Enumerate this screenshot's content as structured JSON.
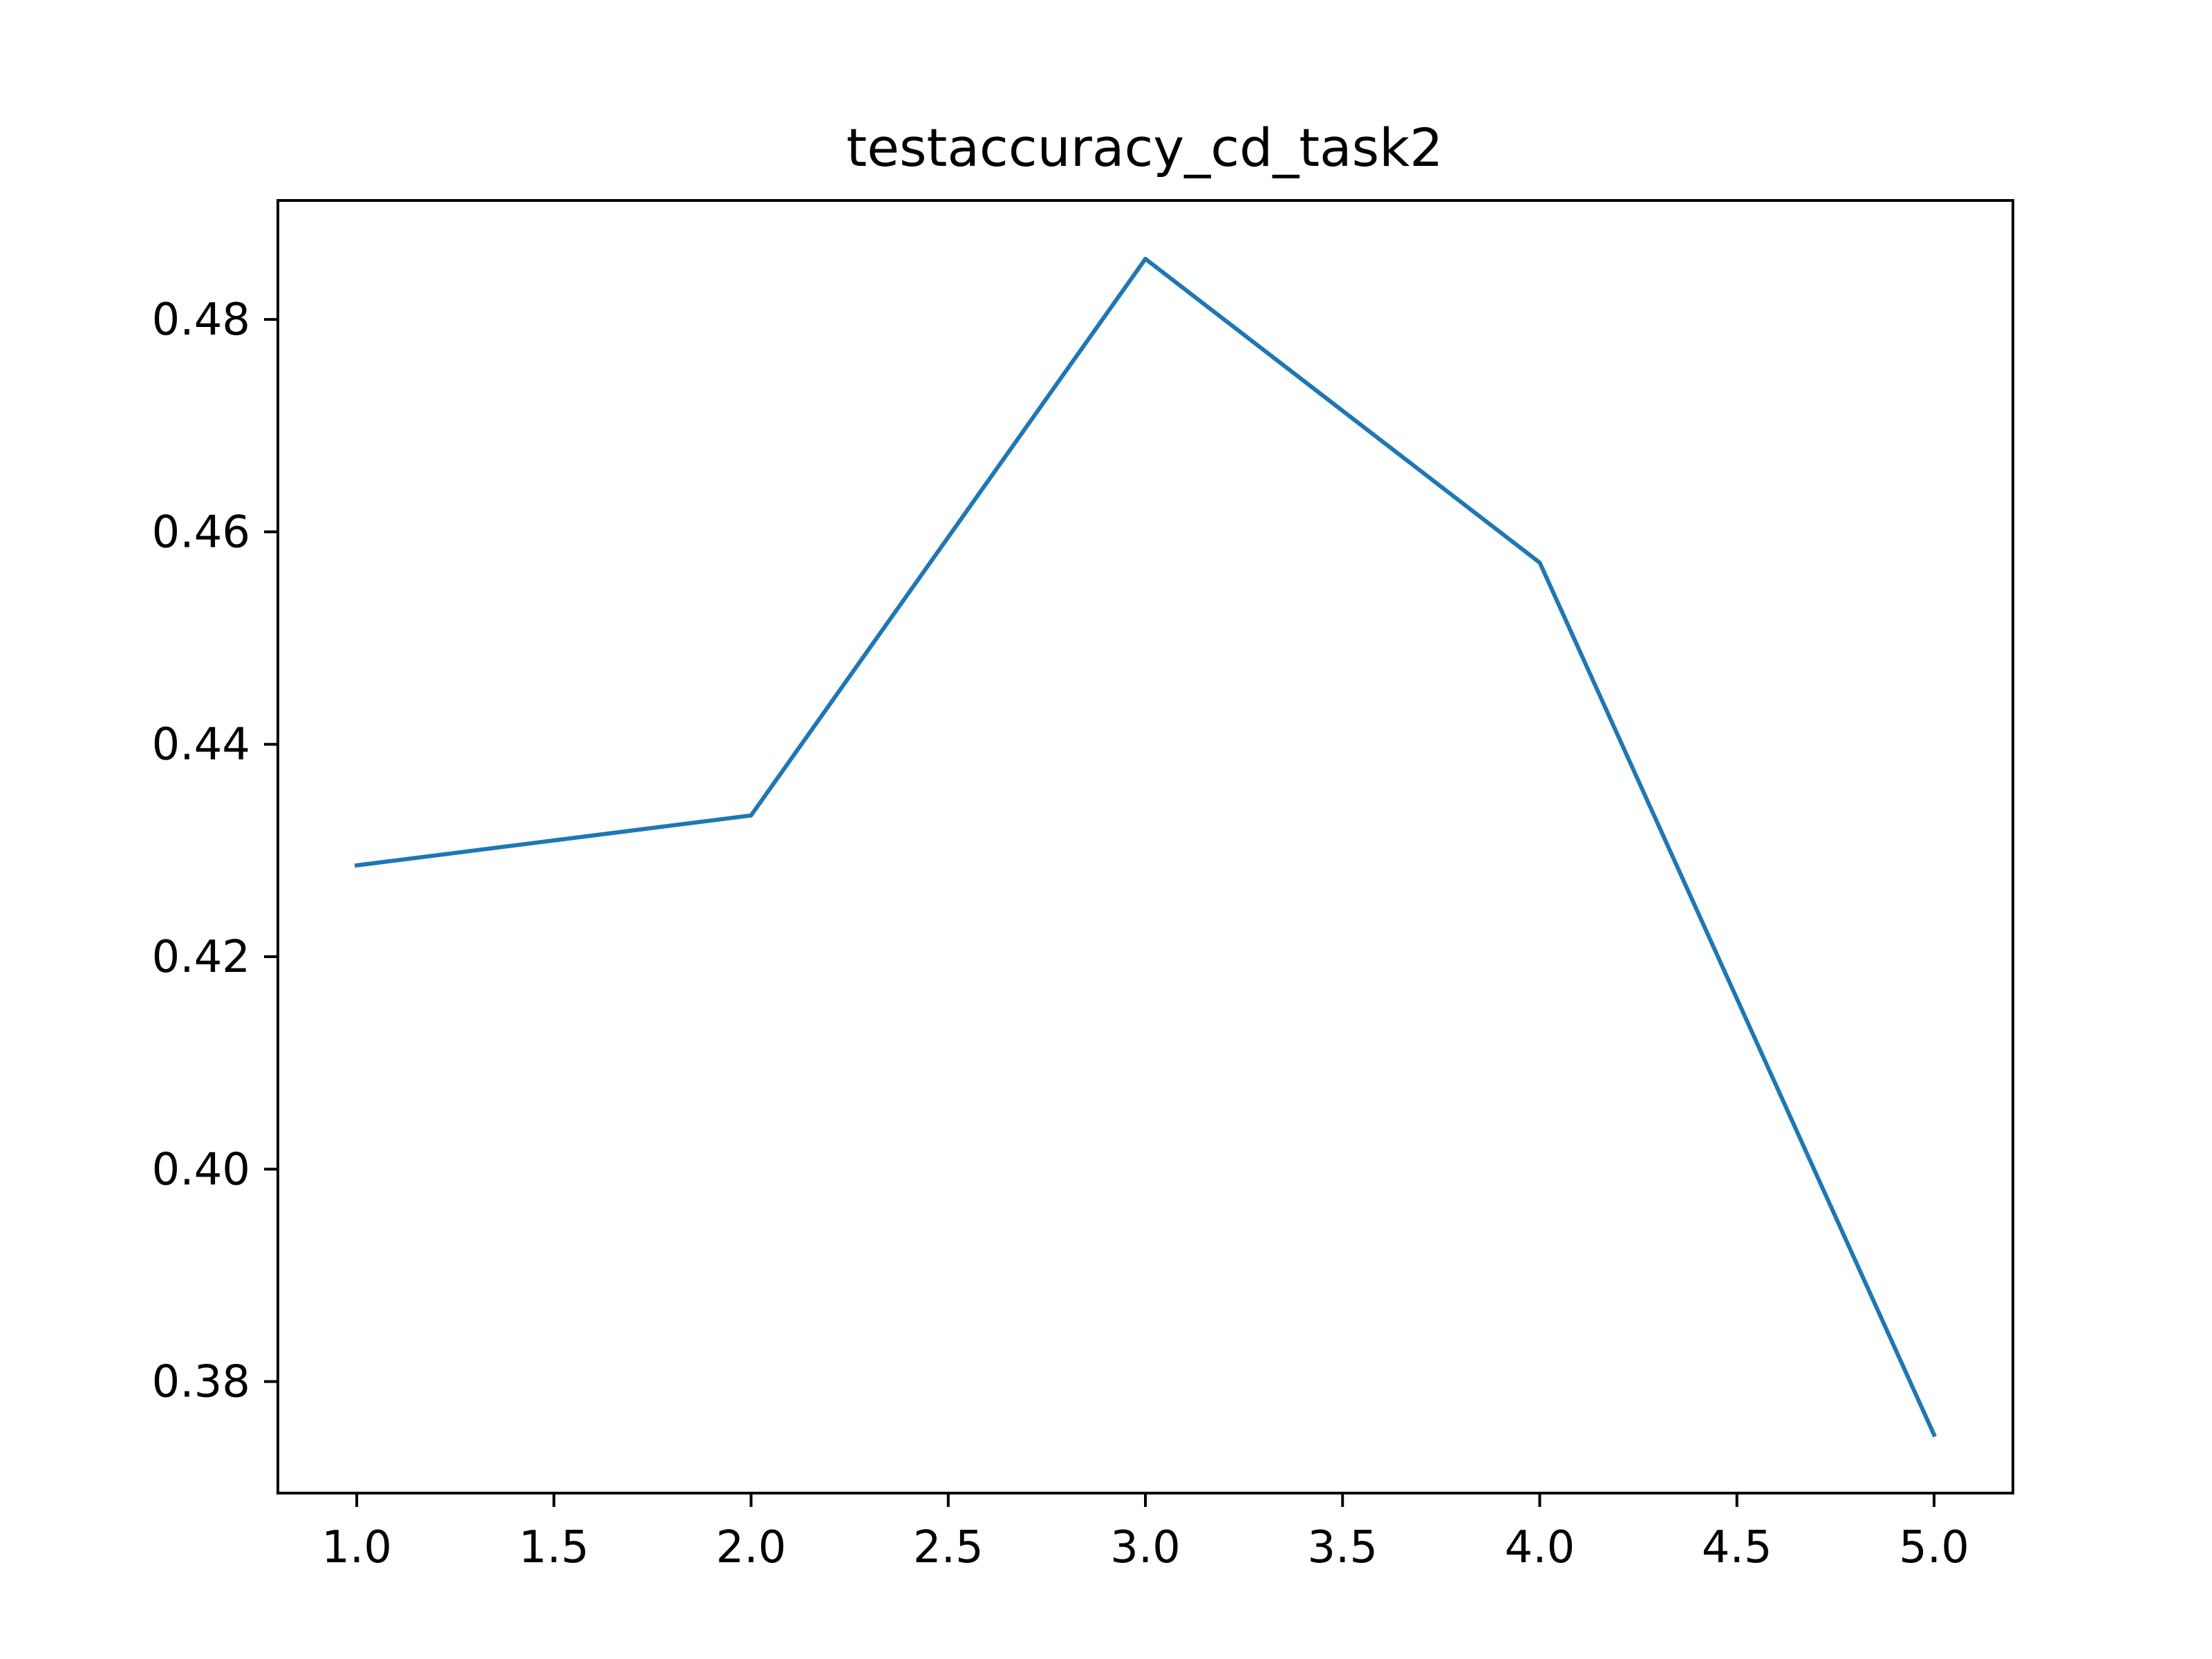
{
  "chart_data": {
    "type": "line",
    "title": "testaccuracy_cd_task2",
    "xlabel": "",
    "ylabel": "",
    "x": [
      1.0,
      2.0,
      3.0,
      4.0,
      5.0
    ],
    "series": [
      {
        "values": [
          0.4286,
          0.4333,
          0.4857,
          0.4571,
          0.375
        ],
        "color": "#1f77b4"
      }
    ],
    "xlim": [
      0.8,
      5.2
    ],
    "ylim": [
      0.3695,
      0.4912
    ],
    "xticks": [
      1.0,
      1.5,
      2.0,
      2.5,
      3.0,
      3.5,
      4.0,
      4.5,
      5.0
    ],
    "xtick_labels": [
      "1.0",
      "1.5",
      "2.0",
      "2.5",
      "3.0",
      "3.5",
      "4.0",
      "4.5",
      "5.0"
    ],
    "yticks": [
      0.38,
      0.4,
      0.42,
      0.44,
      0.46,
      0.48
    ],
    "ytick_labels": [
      "0.38",
      "0.40",
      "0.42",
      "0.44",
      "0.46",
      "0.48"
    ],
    "grid": false,
    "legend": "none"
  }
}
